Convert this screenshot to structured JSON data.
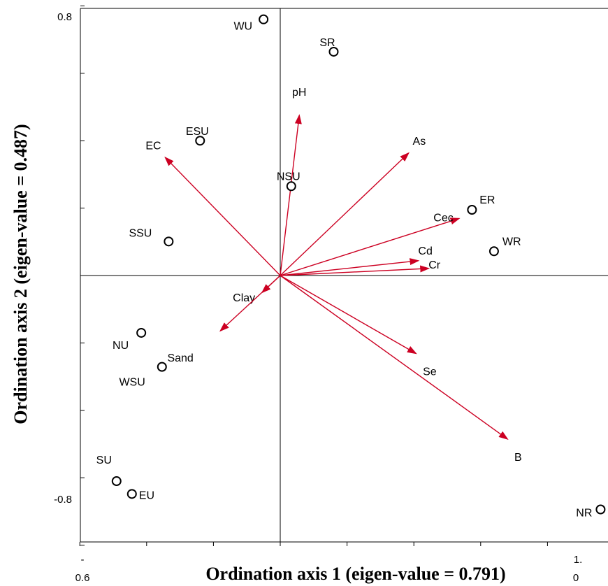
{
  "chart_data": {
    "type": "scatter",
    "subtype": "ordination-biplot",
    "xlabel": "Ordination axis 1 (eigen-value = 0.791)",
    "ylabel": "Ordination axis 2 (eigen-value = 0.487)",
    "xlim": [
      -0.6,
      1.0
    ],
    "ylim": [
      -0.8,
      0.8
    ],
    "x_tick_labels": {
      "min": "-\n0.6",
      "max": "1.\n0"
    },
    "y_tick_labels": {
      "max": "0.8",
      "min": "-0.8"
    },
    "colors": {
      "arrow": "#cc0022",
      "point": "#000000",
      "axis": "#000000"
    },
    "sites": [
      {
        "name": "WU",
        "x": -0.05,
        "y": 0.76
      },
      {
        "name": "SR",
        "x": 0.16,
        "y": 0.664
      },
      {
        "name": "ESU",
        "x": -0.24,
        "y": 0.4
      },
      {
        "name": "NSU",
        "x": 0.033,
        "y": 0.265
      },
      {
        "name": "ER",
        "x": 0.574,
        "y": 0.195
      },
      {
        "name": "SSU",
        "x": -0.334,
        "y": 0.101
      },
      {
        "name": "WR",
        "x": 0.64,
        "y": 0.072
      },
      {
        "name": "NU",
        "x": -0.416,
        "y": -0.17
      },
      {
        "name": "WSU",
        "x": -0.354,
        "y": -0.271
      },
      {
        "name": "SU",
        "x": -0.49,
        "y": -0.61
      },
      {
        "name": "EU",
        "x": -0.444,
        "y": -0.648
      },
      {
        "name": "NR",
        "x": 0.959,
        "y": -0.694
      }
    ],
    "variables": [
      {
        "name": "pH",
        "x": 0.057,
        "y": 0.475
      },
      {
        "name": "As",
        "x": 0.384,
        "y": 0.363
      },
      {
        "name": "EC",
        "x": -0.344,
        "y": 0.35
      },
      {
        "name": "Cec",
        "x": 0.535,
        "y": 0.169
      },
      {
        "name": "Cd",
        "x": 0.413,
        "y": 0.044
      },
      {
        "name": "Cr",
        "x": 0.444,
        "y": 0.021
      },
      {
        "name": "Clay",
        "x": -0.054,
        "y": -0.05
      },
      {
        "name": "Sand",
        "x": -0.179,
        "y": -0.164
      },
      {
        "name": "Se",
        "x": 0.406,
        "y": -0.231
      },
      {
        "name": "B",
        "x": 0.68,
        "y": -0.485
      }
    ]
  }
}
